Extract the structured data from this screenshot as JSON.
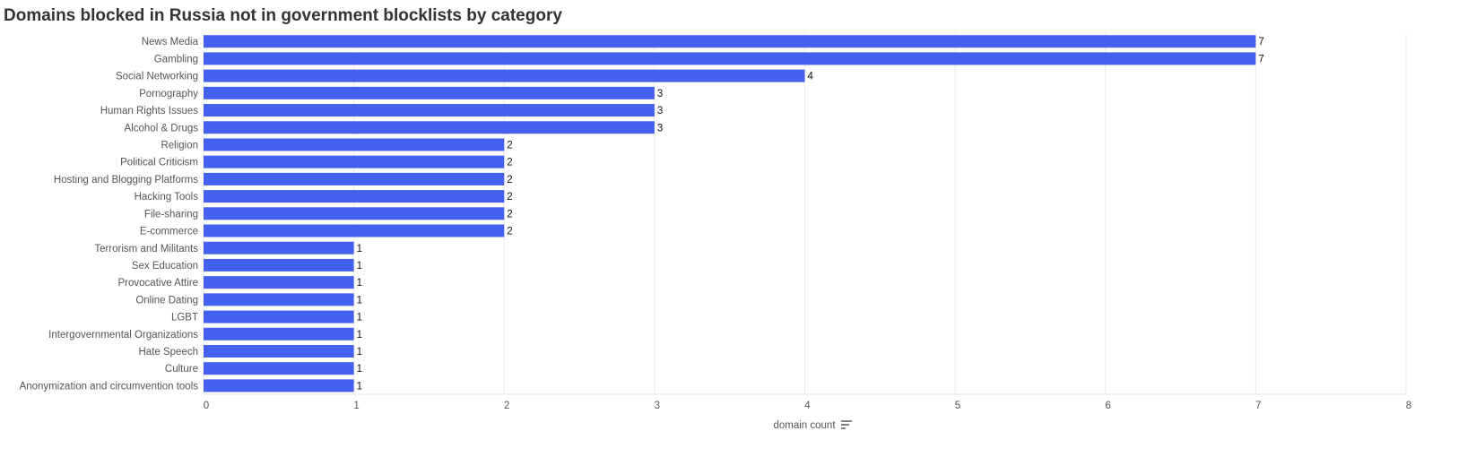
{
  "chart_data": {
    "type": "bar",
    "title": "Domains blocked in Russia not in government blocklists by category",
    "x_label": "domain count",
    "categories": [
      "News Media",
      "Gambling",
      "Social Networking",
      "Pornography",
      "Human Rights Issues",
      "Alcohol & Drugs",
      "Religion",
      "Political Criticism",
      "Hosting and Blogging Platforms",
      "Hacking Tools",
      "File-sharing",
      "E-commerce",
      "Terrorism and Militants",
      "Sex Education",
      "Provocative Attire",
      "Online Dating",
      "LGBT",
      "Intergovernmental Organizations",
      "Hate Speech",
      "Culture",
      "Anonymization and circumvention tools"
    ],
    "values": [
      7,
      7,
      4,
      3,
      3,
      3,
      2,
      2,
      2,
      2,
      2,
      2,
      1,
      1,
      1,
      1,
      1,
      1,
      1,
      1,
      1
    ],
    "color": "#4361ee",
    "xlim": [
      0,
      8
    ],
    "xticks": [
      0,
      1,
      2,
      3,
      4,
      5,
      6,
      7,
      8
    ],
    "grid": true
  }
}
